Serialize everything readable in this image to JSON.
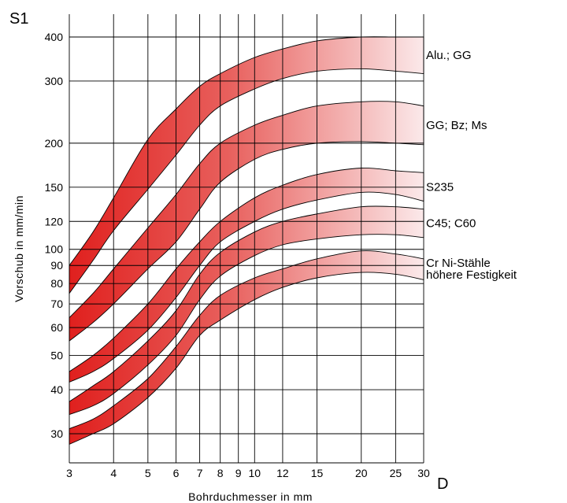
{
  "chart_data": {
    "type": "area",
    "y_corner_label": "S1",
    "x_corner_label": "D",
    "xlabel": "Bohrduchmesser in mm",
    "ylabel": "Vorschub in mm/min",
    "x_scale": "log",
    "y_scale": "log",
    "xlim": [
      3,
      30
    ],
    "ylim": [
      26,
      450
    ],
    "x_ticks": [
      3,
      4,
      5,
      6,
      7,
      8,
      9,
      10,
      12,
      15,
      20,
      25,
      30
    ],
    "x_tick_labels": [
      "3",
      "4",
      "5",
      "6",
      "7",
      "8",
      "9",
      "10",
      "12",
      "15",
      "20",
      "25",
      "30"
    ],
    "y_ticks": [
      30,
      40,
      50,
      60,
      70,
      80,
      90,
      100,
      120,
      150,
      200,
      300,
      400
    ],
    "y_tick_labels": [
      "30",
      "40",
      "50",
      "60",
      "70",
      "80",
      "90",
      "100",
      "120",
      "150",
      "200",
      "300",
      "400"
    ],
    "grid": true,
    "colors": {
      "band_start": "#e0201e",
      "band_end": "#fbe9ea",
      "outline": "#000000",
      "grid": "#000000"
    },
    "series": [
      {
        "name": "Alu.; GG",
        "x": [
          3,
          3.5,
          4,
          5,
          6,
          7,
          8,
          10,
          12,
          15,
          20,
          25,
          30
        ],
        "upper": [
          90,
          112,
          140,
          205,
          250,
          290,
          315,
          350,
          370,
          390,
          400,
          400,
          400
        ],
        "lower": [
          75,
          93,
          113,
          148,
          185,
          225,
          255,
          285,
          305,
          320,
          325,
          320,
          315
        ]
      },
      {
        "name": "GG; Bz; Ms",
        "x": [
          3,
          3.5,
          4,
          5,
          6,
          7,
          8,
          10,
          12,
          15,
          20,
          25,
          30
        ],
        "upper": [
          64,
          75,
          88,
          115,
          143,
          175,
          200,
          225,
          240,
          255,
          262,
          262,
          255
        ],
        "lower": [
          55,
          62,
          70,
          88,
          105,
          130,
          155,
          180,
          192,
          200,
          202,
          200,
          198
        ]
      },
      {
        "name": "S235",
        "x": [
          3,
          3.5,
          4,
          5,
          6,
          7,
          8,
          10,
          12,
          15,
          20,
          25,
          30
        ],
        "upper": [
          45,
          50,
          56,
          70,
          88,
          105,
          120,
          140,
          152,
          163,
          170,
          167,
          165
        ],
        "lower": [
          42,
          45,
          49,
          59,
          73,
          90,
          105,
          120,
          130,
          138,
          145,
          143,
          137
        ]
      },
      {
        "name": "C45; C60",
        "x": [
          3,
          3.5,
          4,
          5,
          6,
          7,
          8,
          10,
          12,
          15,
          20,
          25,
          30
        ],
        "upper": [
          37,
          41,
          45,
          55,
          67,
          85,
          98,
          112,
          120,
          126,
          132,
          132,
          130
        ],
        "lower": [
          34,
          36,
          39,
          47,
          57,
          72,
          84,
          96,
          103,
          107,
          110,
          110,
          108
        ]
      },
      {
        "name": "Cr Ni-Stähle\nhöhere Festigkeit",
        "x": [
          3,
          3.5,
          4,
          5,
          6,
          7,
          8,
          10,
          12,
          15,
          20,
          25,
          30
        ],
        "upper": [
          31,
          33,
          36,
          43,
          53,
          65,
          74,
          83,
          88,
          94,
          99,
          97,
          94
        ],
        "lower": [
          28,
          30,
          32,
          38,
          46,
          57,
          63,
          72,
          78,
          83,
          86,
          85,
          82
        ]
      }
    ]
  }
}
